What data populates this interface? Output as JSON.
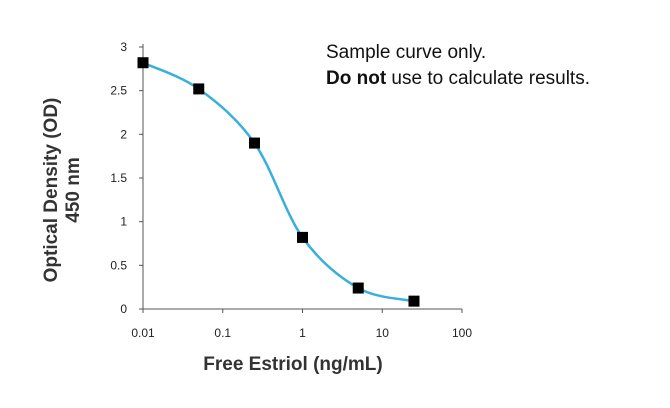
{
  "chart_data": {
    "type": "scatter",
    "xlabel": "Free Estriol (ng/mL)",
    "ylabel_line1": "Optical Density (OD)",
    "ylabel_line2": "450 nm",
    "x_scale": "log",
    "xlim": [
      0.01,
      100
    ],
    "ylim": [
      0,
      3
    ],
    "x_ticks": [
      0.01,
      0.1,
      1,
      10,
      100
    ],
    "x_tick_labels": [
      "0.01",
      "0.1",
      "1",
      "10",
      "100"
    ],
    "y_ticks": [
      0,
      0.5,
      1,
      1.5,
      2,
      2.5,
      3
    ],
    "y_tick_labels": [
      "0",
      "0.5",
      "1",
      "1.5",
      "2",
      "2.5",
      "3"
    ],
    "grid": false,
    "points": [
      {
        "x": 0.01,
        "y": 2.82
      },
      {
        "x": 0.05,
        "y": 2.52
      },
      {
        "x": 0.25,
        "y": 1.9
      },
      {
        "x": 1.0,
        "y": 0.82
      },
      {
        "x": 5.0,
        "y": 0.24
      },
      {
        "x": 25.0,
        "y": 0.09
      }
    ],
    "fit_curve": true,
    "marker_color": "#000000",
    "curve_color": "#3aaedc"
  },
  "annotation": {
    "line1": "Sample curve only.",
    "line2_bold": "Do not",
    "line2_rest": " use to calculate results."
  }
}
